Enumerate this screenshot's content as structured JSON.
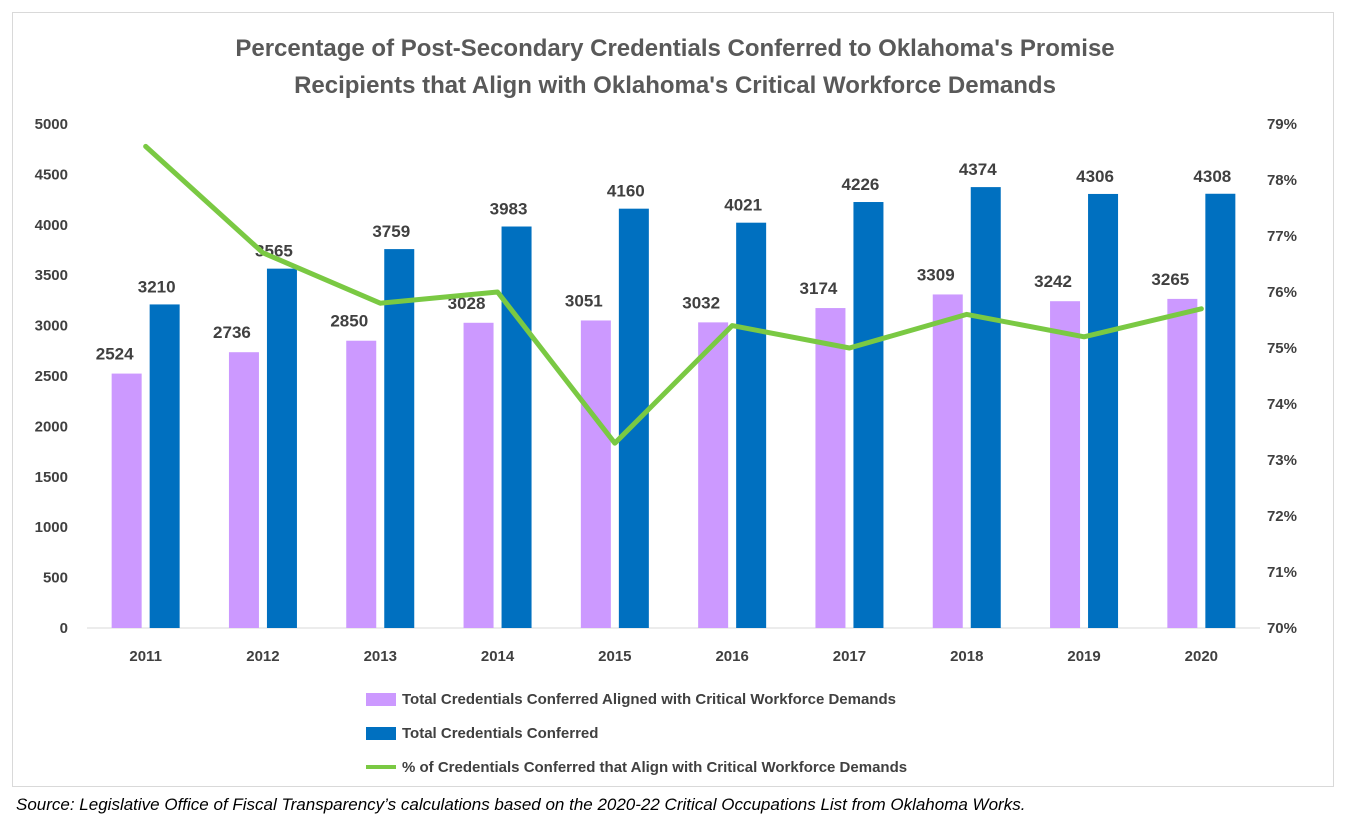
{
  "chart_data": {
    "type": "bar",
    "title_line1": "Percentage of Post-Secondary Credentials Conferred to Oklahoma's Promise",
    "title_line2": "Recipients that Align with Oklahoma's Critical Workforce Demands",
    "categories": [
      "2011",
      "2012",
      "2013",
      "2014",
      "2015",
      "2016",
      "2017",
      "2018",
      "2019",
      "2020"
    ],
    "series": [
      {
        "name": "Total Credentials Conferred Aligned with Critical Workforce Demands",
        "type": "bar",
        "axis": "left",
        "color": "#cc99ff",
        "values": [
          2524,
          2736,
          2850,
          3028,
          3051,
          3032,
          3174,
          3309,
          3242,
          3265
        ]
      },
      {
        "name": "Total Credentials Conferred",
        "type": "bar",
        "axis": "left",
        "color": "#0070c0",
        "values": [
          3210,
          3565,
          3759,
          3983,
          4160,
          4021,
          4226,
          4374,
          4306,
          4308
        ]
      },
      {
        "name": "% of Credentials Conferred that Align with Critical Workforce Demands",
        "type": "line",
        "axis": "right",
        "color": "#7ac943",
        "values": [
          78.6,
          76.7,
          75.8,
          76.0,
          73.3,
          75.4,
          75.0,
          75.6,
          75.2,
          75.7
        ]
      }
    ],
    "y_left": {
      "min": 0,
      "max": 5000,
      "ticks": [
        "0",
        "500",
        "1000",
        "1500",
        "2000",
        "2500",
        "3000",
        "3500",
        "4000",
        "4500",
        "5000"
      ]
    },
    "y_right": {
      "min": 70,
      "max": 79,
      "ticks": [
        "70%",
        "71%",
        "72%",
        "73%",
        "74%",
        "75%",
        "76%",
        "77%",
        "78%",
        "79%"
      ]
    },
    "grid": false,
    "legend_position": "bottom"
  },
  "source_text": "Source: Legislative Office of Fiscal Transparency’s calculations based on the 2020-22 Critical Occupations List from Oklahoma Works."
}
